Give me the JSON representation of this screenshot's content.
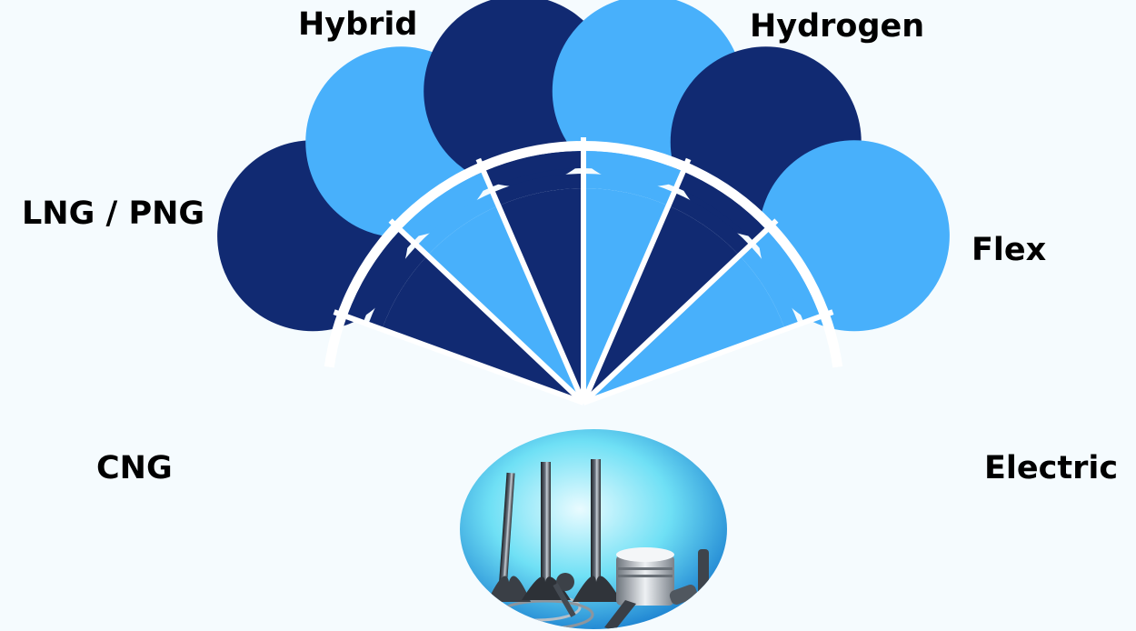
{
  "colors": {
    "background": "#f5fbfe",
    "dark": "#112a72",
    "light": "#48b0fb",
    "separator": "#ffffff"
  },
  "fuels": [
    {
      "label": "CNG",
      "tone": "dark"
    },
    {
      "label": "LNG / PNG",
      "tone": "light"
    },
    {
      "label": "Hybrid",
      "tone": "dark"
    },
    {
      "label": "Hydrogen",
      "tone": "light"
    },
    {
      "label": "Flex",
      "tone": "dark"
    },
    {
      "label": "Electric",
      "tone": "light"
    }
  ],
  "center_image": {
    "icon": "engine-valves-and-piston-photo-icon"
  }
}
